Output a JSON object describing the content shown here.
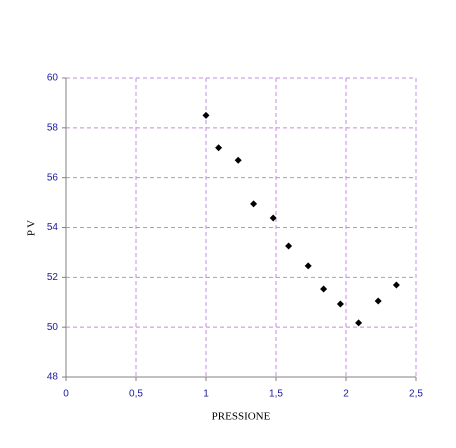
{
  "chart_data": {
    "type": "scatter",
    "x_label": "PRESSIONE",
    "y_label": "P V",
    "x": [
      1.0,
      1.09,
      1.23,
      1.34,
      1.48,
      1.59,
      1.73,
      1.84,
      1.96,
      2.09,
      2.23,
      2.36
    ],
    "y": [
      58.5,
      57.2,
      56.7,
      54.95,
      54.38,
      53.26,
      52.46,
      51.53,
      50.93,
      50.17,
      51.05,
      51.69
    ],
    "color": "#000000",
    "xlim": [
      0,
      2.5
    ],
    "xticks": [
      0,
      {
        "value": 0.5,
        "label": "0,5"
      },
      1,
      {
        "value": 1.5,
        "label": "1,5"
      },
      2,
      {
        "value": 2.5,
        "label": "2,5"
      }
    ],
    "ylim": [
      48,
      60
    ],
    "yticks": [
      48,
      50,
      52,
      54,
      56,
      58,
      60
    ],
    "grid": true
  }
}
